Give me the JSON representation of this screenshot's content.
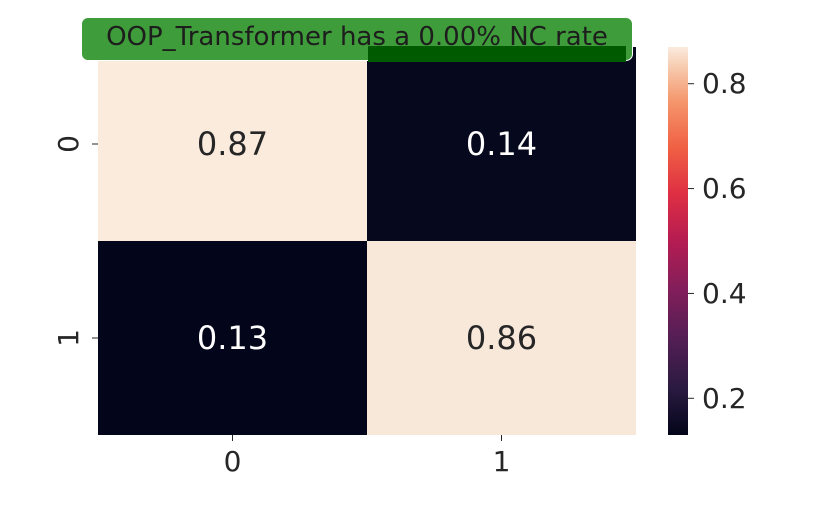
{
  "chart_data": {
    "type": "heatmap",
    "title": "OOP_Transformer has a 0.00% NC rate",
    "title_bg_color": "#3f9c3a",
    "title_accent_color": "#005a00",
    "x_categories": [
      "0",
      "1"
    ],
    "y_categories": [
      "0",
      "1"
    ],
    "values": [
      [
        0.87,
        0.14
      ],
      [
        0.13,
        0.86
      ]
    ],
    "cell_labels": [
      [
        "0.87",
        "0.14"
      ],
      [
        "0.13",
        "0.86"
      ]
    ],
    "colormap": "rocket",
    "color_range": [
      0.13,
      0.87
    ],
    "colorbar_ticks": [
      0.2,
      0.4,
      0.6,
      0.8
    ],
    "colorbar_tick_labels": [
      "0.2",
      "0.4",
      "0.6",
      "0.8"
    ],
    "high_color": "#faebdd",
    "low_color": "#03051a"
  }
}
